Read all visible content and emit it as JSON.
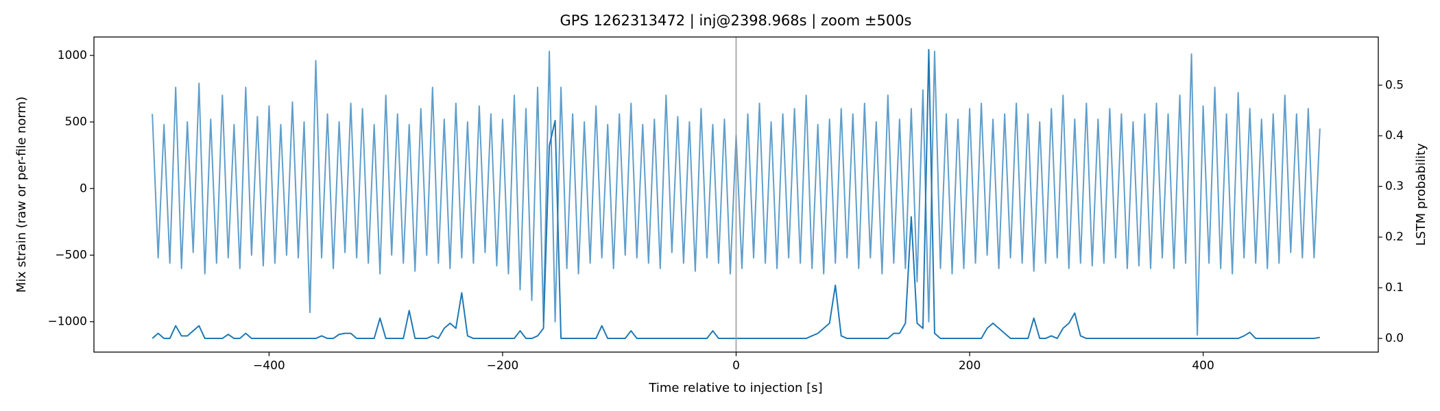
{
  "chart_data": {
    "type": "line",
    "title": "GPS 1262313472 | inj@2398.968s | zoom ±500s",
    "x_label": "Time relative to injection [s]",
    "y_label": "Mix strain (raw or per-file norm)",
    "y2_label": "LSTM probability",
    "xlim": [
      -550,
      550
    ],
    "xticks": [
      {
        "value": -400,
        "label": "−400"
      },
      {
        "value": -200,
        "label": "−200"
      },
      0,
      200,
      400
    ],
    "ylim": [
      -1228,
      1138
    ],
    "yticks": [
      {
        "value": -1000,
        "label": "−1000"
      },
      {
        "value": -500,
        "label": "−500"
      },
      0,
      500,
      1000
    ],
    "y2lim": [
      -0.027,
      0.595
    ],
    "y2ticks": [
      {
        "value": 0,
        "label": "0.0"
      },
      0.1,
      0.2,
      0.3,
      0.4,
      0.5
    ],
    "vlines": [
      0
    ],
    "vline_color": "#999999",
    "x": [
      -500,
      -495,
      -490,
      -485,
      -480,
      -475,
      -470,
      -465,
      -460,
      -455,
      -450,
      -445,
      -440,
      -435,
      -430,
      -425,
      -420,
      -415,
      -410,
      -405,
      -400,
      -395,
      -390,
      -385,
      -380,
      -375,
      -370,
      -365,
      -360,
      -355,
      -350,
      -345,
      -340,
      -335,
      -330,
      -325,
      -320,
      -315,
      -310,
      -305,
      -300,
      -295,
      -290,
      -285,
      -280,
      -275,
      -270,
      -265,
      -260,
      -255,
      -250,
      -245,
      -240,
      -235,
      -230,
      -225,
      -220,
      -215,
      -210,
      -205,
      -200,
      -195,
      -190,
      -185,
      -180,
      -175,
      -170,
      -165,
      -160,
      -155,
      -150,
      -145,
      -140,
      -135,
      -130,
      -125,
      -120,
      -115,
      -110,
      -105,
      -100,
      -95,
      -90,
      -85,
      -80,
      -75,
      -70,
      -65,
      -60,
      -55,
      -50,
      -45,
      -40,
      -35,
      -30,
      -25,
      -20,
      -15,
      -10,
      -5,
      0,
      5,
      10,
      15,
      20,
      25,
      30,
      35,
      40,
      45,
      50,
      55,
      60,
      65,
      70,
      75,
      80,
      85,
      90,
      95,
      100,
      105,
      110,
      115,
      120,
      125,
      130,
      135,
      140,
      145,
      150,
      155,
      160,
      165,
      170,
      175,
      180,
      185,
      190,
      195,
      200,
      205,
      210,
      215,
      220,
      225,
      230,
      235,
      240,
      245,
      250,
      255,
      260,
      265,
      270,
      275,
      280,
      285,
      290,
      295,
      300,
      305,
      310,
      315,
      320,
      325,
      330,
      335,
      340,
      345,
      350,
      355,
      360,
      365,
      370,
      375,
      380,
      385,
      390,
      395,
      400,
      405,
      410,
      415,
      420,
      425,
      430,
      435,
      440,
      445,
      450,
      455,
      460,
      465,
      470,
      475,
      480,
      485,
      490,
      495,
      500
    ],
    "series": [
      {
        "color": "#5f9ecb",
        "axis": "y",
        "values": [
          560,
          -520,
          480,
          -560,
          760,
          -600,
          500,
          -480,
          790,
          -640,
          520,
          -560,
          700,
          -520,
          480,
          -600,
          760,
          -500,
          540,
          -580,
          620,
          -560,
          480,
          -500,
          650,
          -520,
          500,
          -930,
          960,
          -520,
          560,
          -600,
          500,
          -480,
          640,
          -520,
          600,
          -560,
          480,
          -640,
          700,
          -500,
          560,
          -560,
          480,
          -620,
          600,
          -500,
          760,
          -560,
          520,
          -600,
          640,
          -520,
          500,
          -560,
          620,
          -480,
          560,
          -580,
          520,
          -640,
          700,
          -760,
          600,
          -840,
          760,
          -1000,
          1030,
          -1000,
          760,
          -600,
          560,
          -640,
          500,
          -560,
          620,
          -520,
          480,
          -600,
          560,
          -500,
          640,
          -520,
          480,
          -560,
          520,
          -600,
          700,
          -480,
          540,
          -560,
          500,
          -620,
          600,
          -520,
          480,
          -560,
          520,
          -640,
          400,
          -600,
          560,
          -520,
          640,
          -560,
          500,
          -600,
          560,
          -520,
          600,
          -560,
          700,
          -600,
          480,
          -640,
          520,
          -560,
          600,
          -520,
          560,
          -600,
          640,
          -520,
          500,
          -640,
          700,
          -560,
          520,
          -600,
          600,
          -700,
          740,
          -1000,
          1030,
          -600,
          560,
          -640,
          520,
          -600,
          600,
          -560,
          640,
          -500,
          520,
          -600,
          560,
          -520,
          640,
          -560,
          560,
          -620,
          500,
          -560,
          600,
          -520,
          700,
          -600,
          520,
          -560,
          640,
          -580,
          520,
          -560,
          600,
          -520,
          560,
          -600,
          500,
          -580,
          560,
          -600,
          640,
          -520,
          560,
          -600,
          700,
          -560,
          1010,
          -1100,
          620,
          -560,
          760,
          -600,
          560,
          -640,
          720,
          -520,
          600,
          -560,
          520,
          -600,
          560,
          -560,
          700,
          -480,
          560,
          -520,
          600,
          -520,
          450
        ]
      },
      {
        "color": "#1f77b4",
        "axis": "y2",
        "values": [
          0,
          0.01,
          0,
          0,
          0.025,
          0.005,
          0.005,
          0.015,
          0.025,
          0,
          0,
          0,
          0,
          0.008,
          0,
          0,
          0.01,
          0,
          0,
          0,
          0,
          0,
          0,
          0,
          0,
          0,
          0,
          0,
          0,
          0.005,
          0,
          0,
          0.008,
          0.01,
          0.01,
          0,
          0,
          0,
          0,
          0.04,
          0,
          0,
          0,
          0,
          0.055,
          0,
          0,
          0,
          0.005,
          0,
          0.02,
          0.03,
          0.02,
          0.09,
          0.005,
          0,
          0,
          0,
          0,
          0,
          0,
          0,
          0,
          0.015,
          0,
          0,
          0.005,
          0.02,
          0.38,
          0.43,
          0,
          0,
          0,
          0,
          0,
          0,
          0,
          0.025,
          0,
          0,
          0,
          0,
          0.015,
          0,
          0,
          0,
          0,
          0,
          0,
          0,
          0,
          0,
          0,
          0,
          0,
          0,
          0.015,
          0,
          0,
          0,
          0,
          0,
          0,
          0,
          0,
          0,
          0,
          0,
          0,
          0,
          0,
          0,
          0,
          0.005,
          0.01,
          0.02,
          0.03,
          0.105,
          0.005,
          0,
          0,
          0,
          0,
          0,
          0,
          0,
          0,
          0.01,
          0.01,
          0.03,
          0.24,
          0.03,
          0.02,
          0.57,
          0.01,
          0,
          0,
          0,
          0,
          0,
          0,
          0,
          0,
          0.02,
          0.03,
          0.02,
          0.01,
          0,
          0,
          0,
          0,
          0.04,
          0,
          0,
          0.005,
          0,
          0.02,
          0.03,
          0.05,
          0.005,
          0,
          0,
          0,
          0,
          0,
          0,
          0,
          0,
          0,
          0,
          0,
          0,
          0,
          0,
          0,
          0,
          0,
          0,
          0,
          0,
          0,
          0,
          0,
          0,
          0,
          0,
          0,
          0.005,
          0.012,
          0,
          0,
          0,
          0,
          0,
          0,
          0,
          0,
          0,
          0,
          0,
          0.002
        ]
      }
    ]
  }
}
